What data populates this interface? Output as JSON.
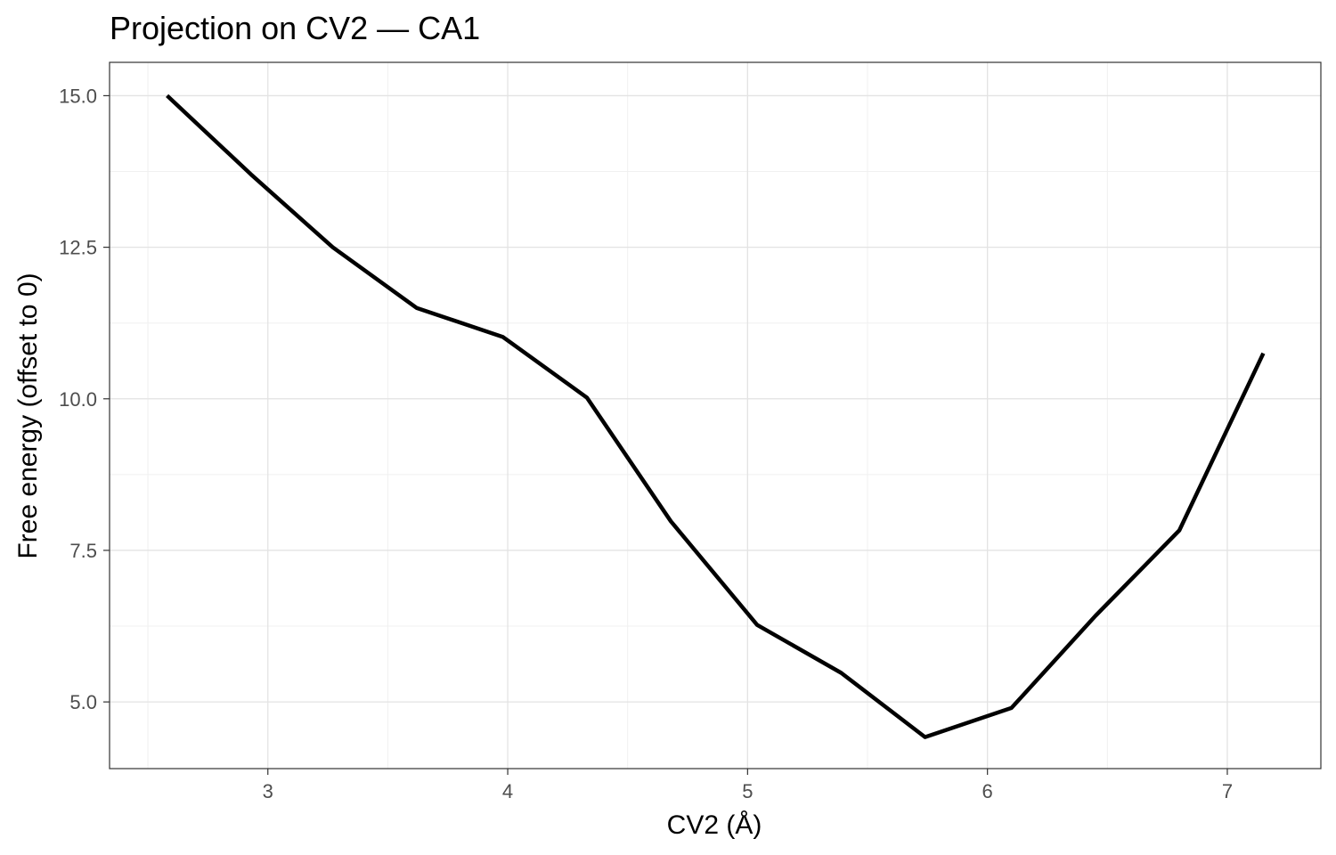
{
  "chart_data": {
    "type": "line",
    "title": "Projection on CV2 — CA1",
    "xlabel": "CV2 (Å)",
    "ylabel": "Free energy (offset to 0)",
    "xlim": [
      2.34,
      7.39
    ],
    "ylim": [
      3.9,
      15.55
    ],
    "xticks": [
      3,
      4,
      5,
      6,
      7
    ],
    "xtick_labels": [
      "3",
      "4",
      "5",
      "6",
      "7"
    ],
    "yticks": [
      5.0,
      7.5,
      10.0,
      12.5,
      15.0
    ],
    "ytick_labels": [
      "5.0",
      "7.5",
      "10.0",
      "12.5",
      "15.0"
    ],
    "grid": true,
    "series": [
      {
        "color": "#000000",
        "x": [
          2.58,
          2.93,
          3.27,
          3.62,
          3.98,
          4.33,
          4.68,
          5.04,
          5.39,
          5.74,
          6.1,
          6.45,
          6.8,
          7.15
        ],
        "y": [
          15.0,
          13.7,
          12.5,
          11.5,
          11.02,
          10.02,
          7.98,
          6.27,
          5.48,
          4.42,
          4.9,
          6.42,
          7.83,
          10.75
        ]
      }
    ]
  }
}
